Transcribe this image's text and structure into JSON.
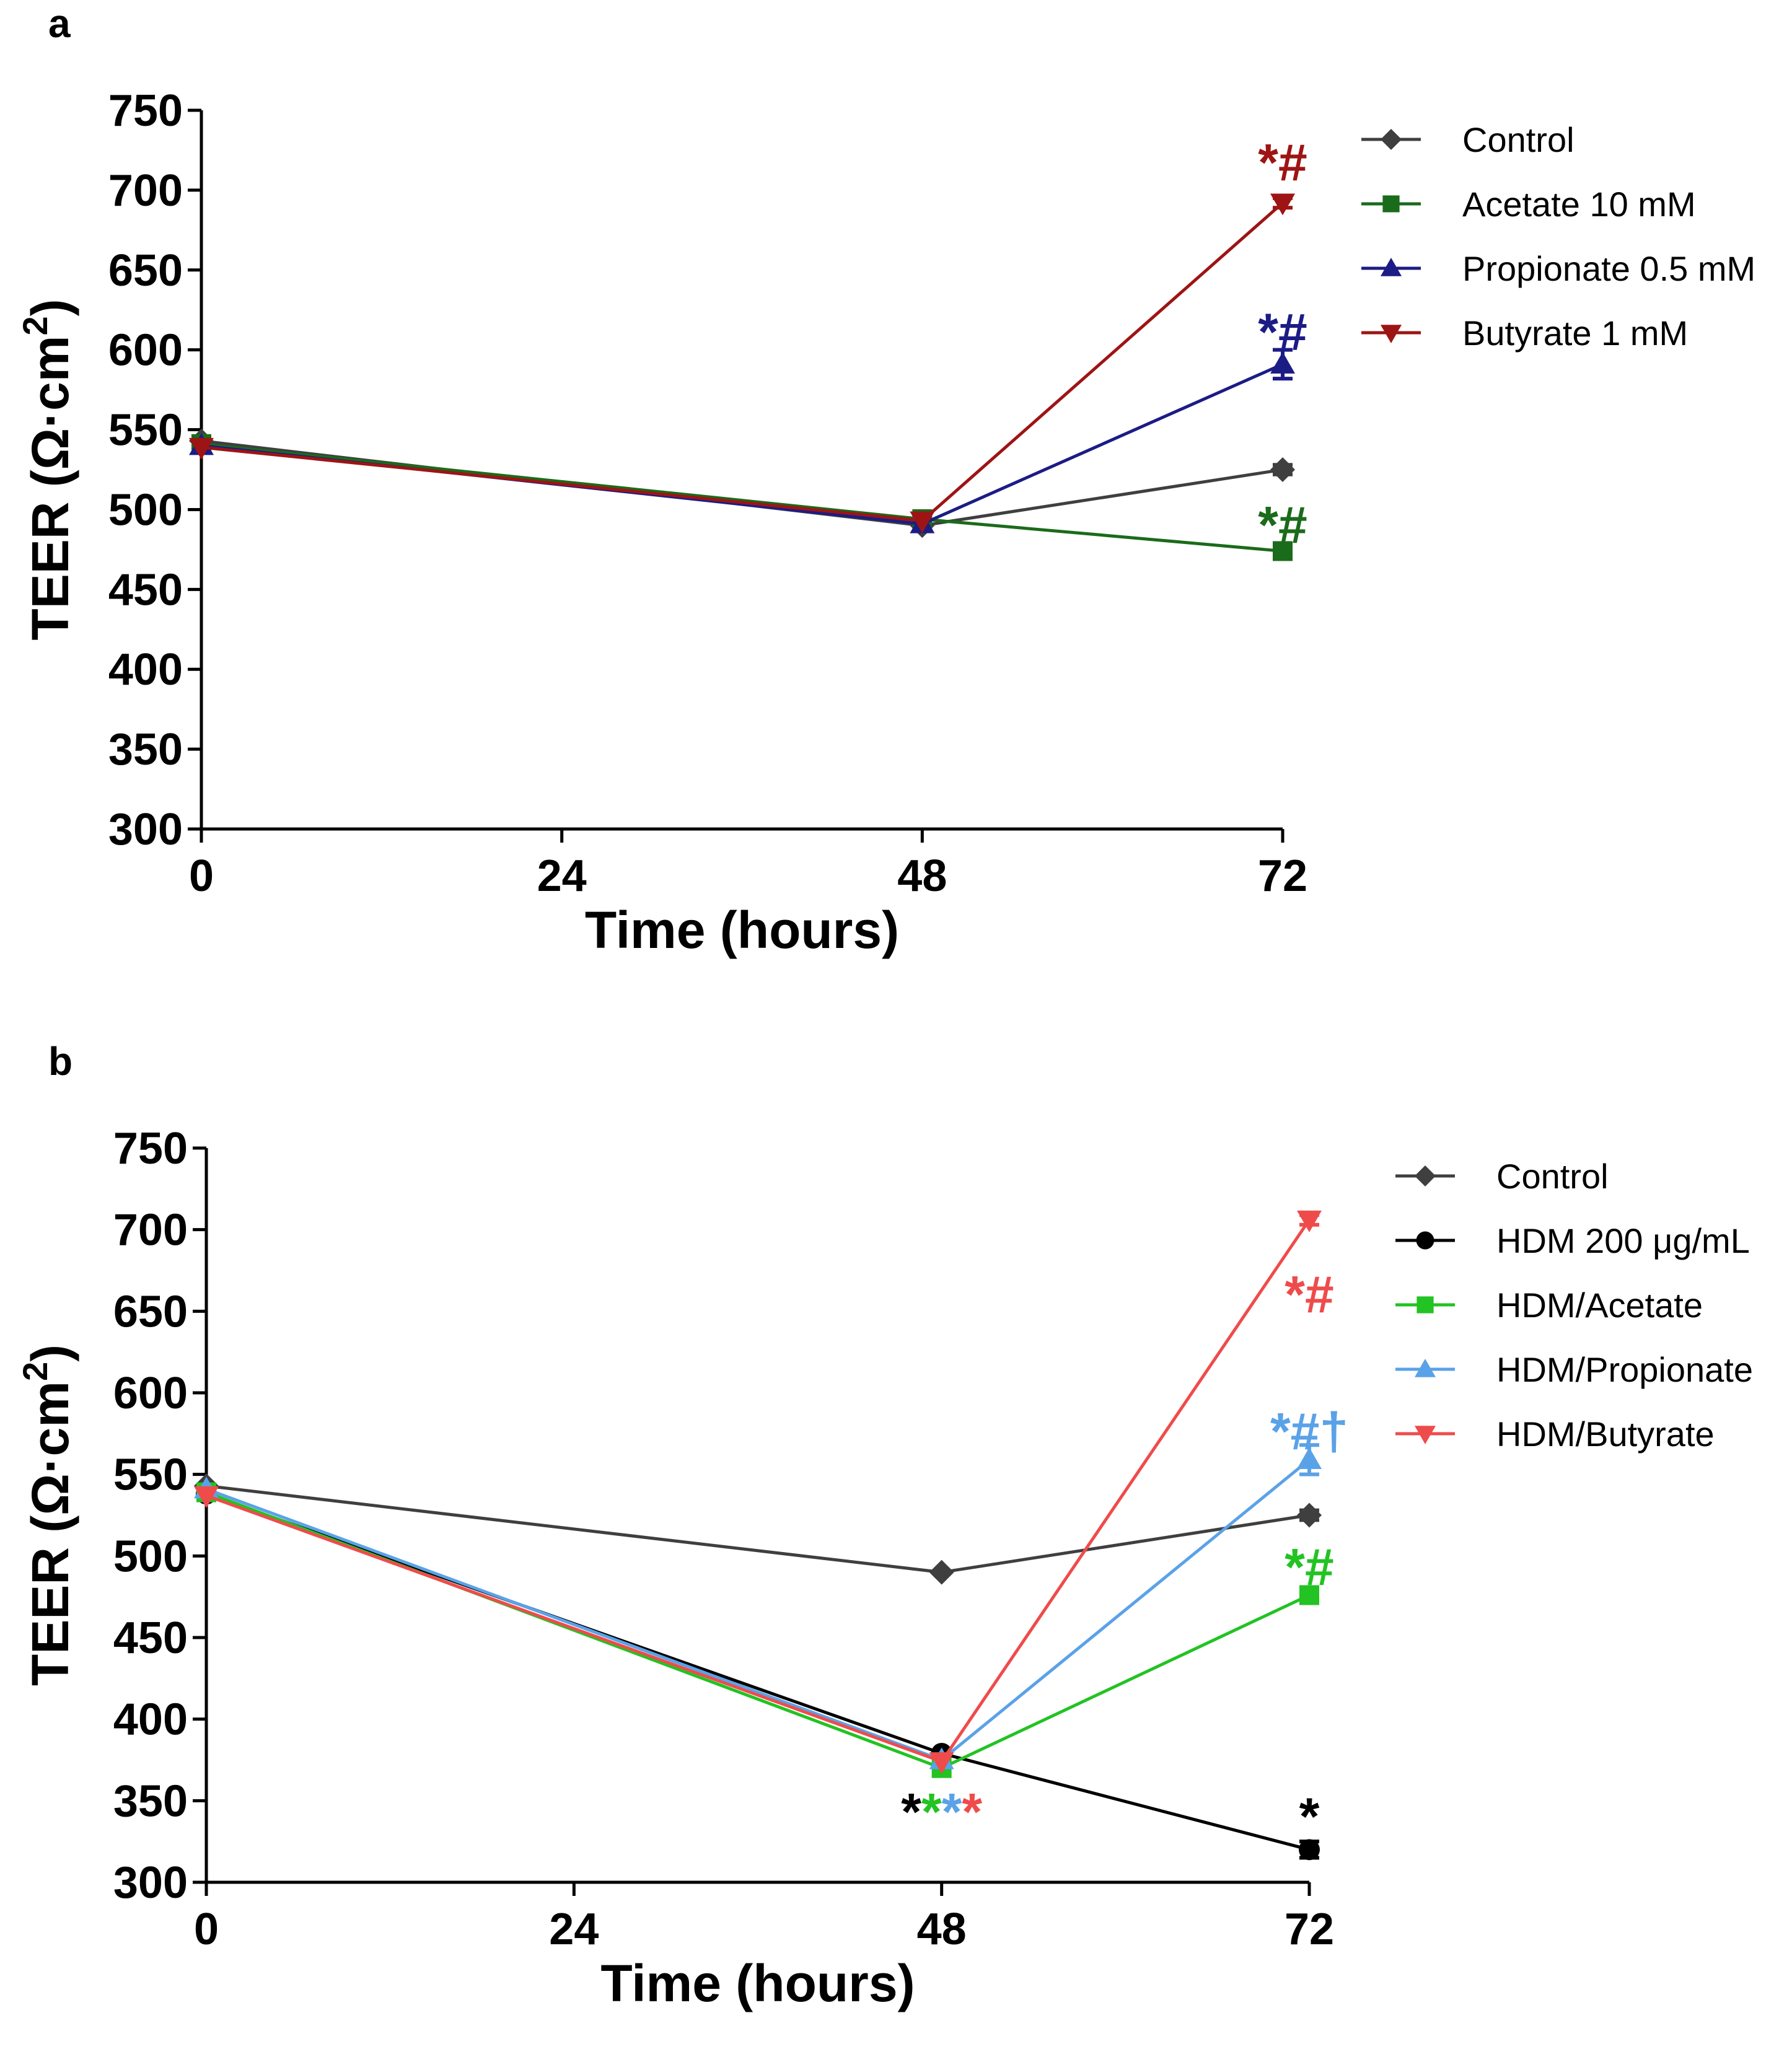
{
  "chart_data": [
    {
      "panel_label": "a",
      "type": "line",
      "xlabel": "Time (hours)",
      "ylabel": "TEER (Ω·cm²)",
      "ylabel_main": "TEER (Ω·cm",
      "ylabel_sup": "2",
      "ylabel_close": ")",
      "x_ticks": [
        "0",
        "24",
        "48",
        "72"
      ],
      "x_tick_values": [
        0,
        24,
        48,
        72
      ],
      "y_ticks": [
        "300",
        "350",
        "400",
        "450",
        "500",
        "550",
        "600",
        "650",
        "700",
        "750"
      ],
      "y_tick_values": [
        300,
        350,
        400,
        450,
        500,
        550,
        600,
        650,
        700,
        750
      ],
      "xlim": [
        0,
        72
      ],
      "ylim": [
        300,
        750
      ],
      "legend_position": "top-right",
      "series": [
        {
          "name": "Control",
          "color": "#3f3f3f",
          "marker": "diamond",
          "x": [
            0,
            48,
            72
          ],
          "values": [
            543,
            490,
            525
          ],
          "error": [
            0,
            0,
            3
          ]
        },
        {
          "name": "Acetate 10 mM",
          "color": "#1a6b1a",
          "marker": "square",
          "x": [
            0,
            48,
            72
          ],
          "values": [
            541,
            494,
            474
          ],
          "error": [
            0,
            0,
            3
          ]
        },
        {
          "name": "Propionate 0.5 mM",
          "color": "#1c1c86",
          "marker": "triangle-up",
          "x": [
            0,
            48,
            72
          ],
          "values": [
            540,
            491,
            591
          ],
          "error": [
            0,
            0,
            9
          ]
        },
        {
          "name": "Butyrate 1 mM",
          "color": "#9e1414",
          "marker": "triangle-down",
          "x": [
            0,
            48,
            72
          ],
          "values": [
            539,
            493,
            692
          ],
          "error": [
            0,
            0,
            3
          ]
        }
      ],
      "annotations": [
        {
          "parts": [
            {
              "text": "*#",
              "color": "#9e1414"
            }
          ],
          "x": 72,
          "y": 717
        },
        {
          "parts": [
            {
              "text": "*#",
              "color": "#1c1c86"
            }
          ],
          "x": 72,
          "y": 611
        },
        {
          "parts": [
            {
              "text": "*#",
              "color": "#1a6b1a"
            }
          ],
          "x": 72,
          "y": 490
        }
      ]
    },
    {
      "panel_label": "b",
      "type": "line",
      "xlabel": "Time (hours)",
      "ylabel": "TEER (Ω·cm²)",
      "ylabel_main": "TEER (Ω·cm",
      "ylabel_sup": "2",
      "ylabel_close": ")",
      "x_ticks": [
        "0",
        "24",
        "48",
        "72"
      ],
      "x_tick_values": [
        0,
        24,
        48,
        72
      ],
      "y_ticks": [
        "300",
        "350",
        "400",
        "450",
        "500",
        "550",
        "600",
        "650",
        "700",
        "750"
      ],
      "y_tick_values": [
        300,
        350,
        400,
        450,
        500,
        550,
        600,
        650,
        700,
        750
      ],
      "xlim": [
        0,
        72
      ],
      "ylim": [
        300,
        750
      ],
      "legend_position": "top-right",
      "series": [
        {
          "name": "Control",
          "color": "#3f3f3f",
          "marker": "diamond",
          "x": [
            0,
            48,
            72
          ],
          "values": [
            543,
            490,
            525
          ],
          "error": [
            0,
            0,
            3
          ]
        },
        {
          "name": "HDM 200 μg/mL",
          "color": "#000000",
          "marker": "circle",
          "x": [
            0,
            48,
            72
          ],
          "values": [
            538,
            379,
            320
          ],
          "error": [
            0,
            0,
            5
          ]
        },
        {
          "name": "HDM/Acetate",
          "color": "#22c322",
          "marker": "square",
          "x": [
            0,
            48,
            72
          ],
          "values": [
            539,
            370,
            476
          ],
          "error": [
            0,
            0,
            3
          ]
        },
        {
          "name": "HDM/Propionate",
          "color": "#5aa2e8",
          "marker": "triangle-up",
          "x": [
            0,
            48,
            72
          ],
          "values": [
            541,
            375,
            559
          ],
          "error": [
            0,
            0,
            9
          ]
        },
        {
          "name": "HDM/Butyrate",
          "color": "#ef4b4b",
          "marker": "triangle-down",
          "x": [
            0,
            48,
            72
          ],
          "values": [
            537,
            374,
            706
          ],
          "error": [
            0,
            0,
            3
          ]
        }
      ],
      "annotations": [
        {
          "parts": [
            {
              "text": "*#",
              "color": "#ef4b4b"
            }
          ],
          "x": 72,
          "y": 660
        },
        {
          "parts": [
            {
              "text": "*#†",
              "color": "#5aa2e8"
            }
          ],
          "x": 72,
          "y": 576
        },
        {
          "parts": [
            {
              "text": "*#",
              "color": "#22c322"
            }
          ],
          "x": 72,
          "y": 493
        },
        {
          "parts": [
            {
              "text": "*",
              "color": "#000000"
            },
            {
              "text": "*",
              "color": "#22c322"
            },
            {
              "text": "*",
              "color": "#5aa2e8"
            },
            {
              "text": "*",
              "color": "#ef4b4b"
            }
          ],
          "x": 48,
          "y": 343
        },
        {
          "parts": [
            {
              "text": "*",
              "color": "#000000"
            }
          ],
          "x": 72,
          "y": 340
        }
      ]
    }
  ]
}
